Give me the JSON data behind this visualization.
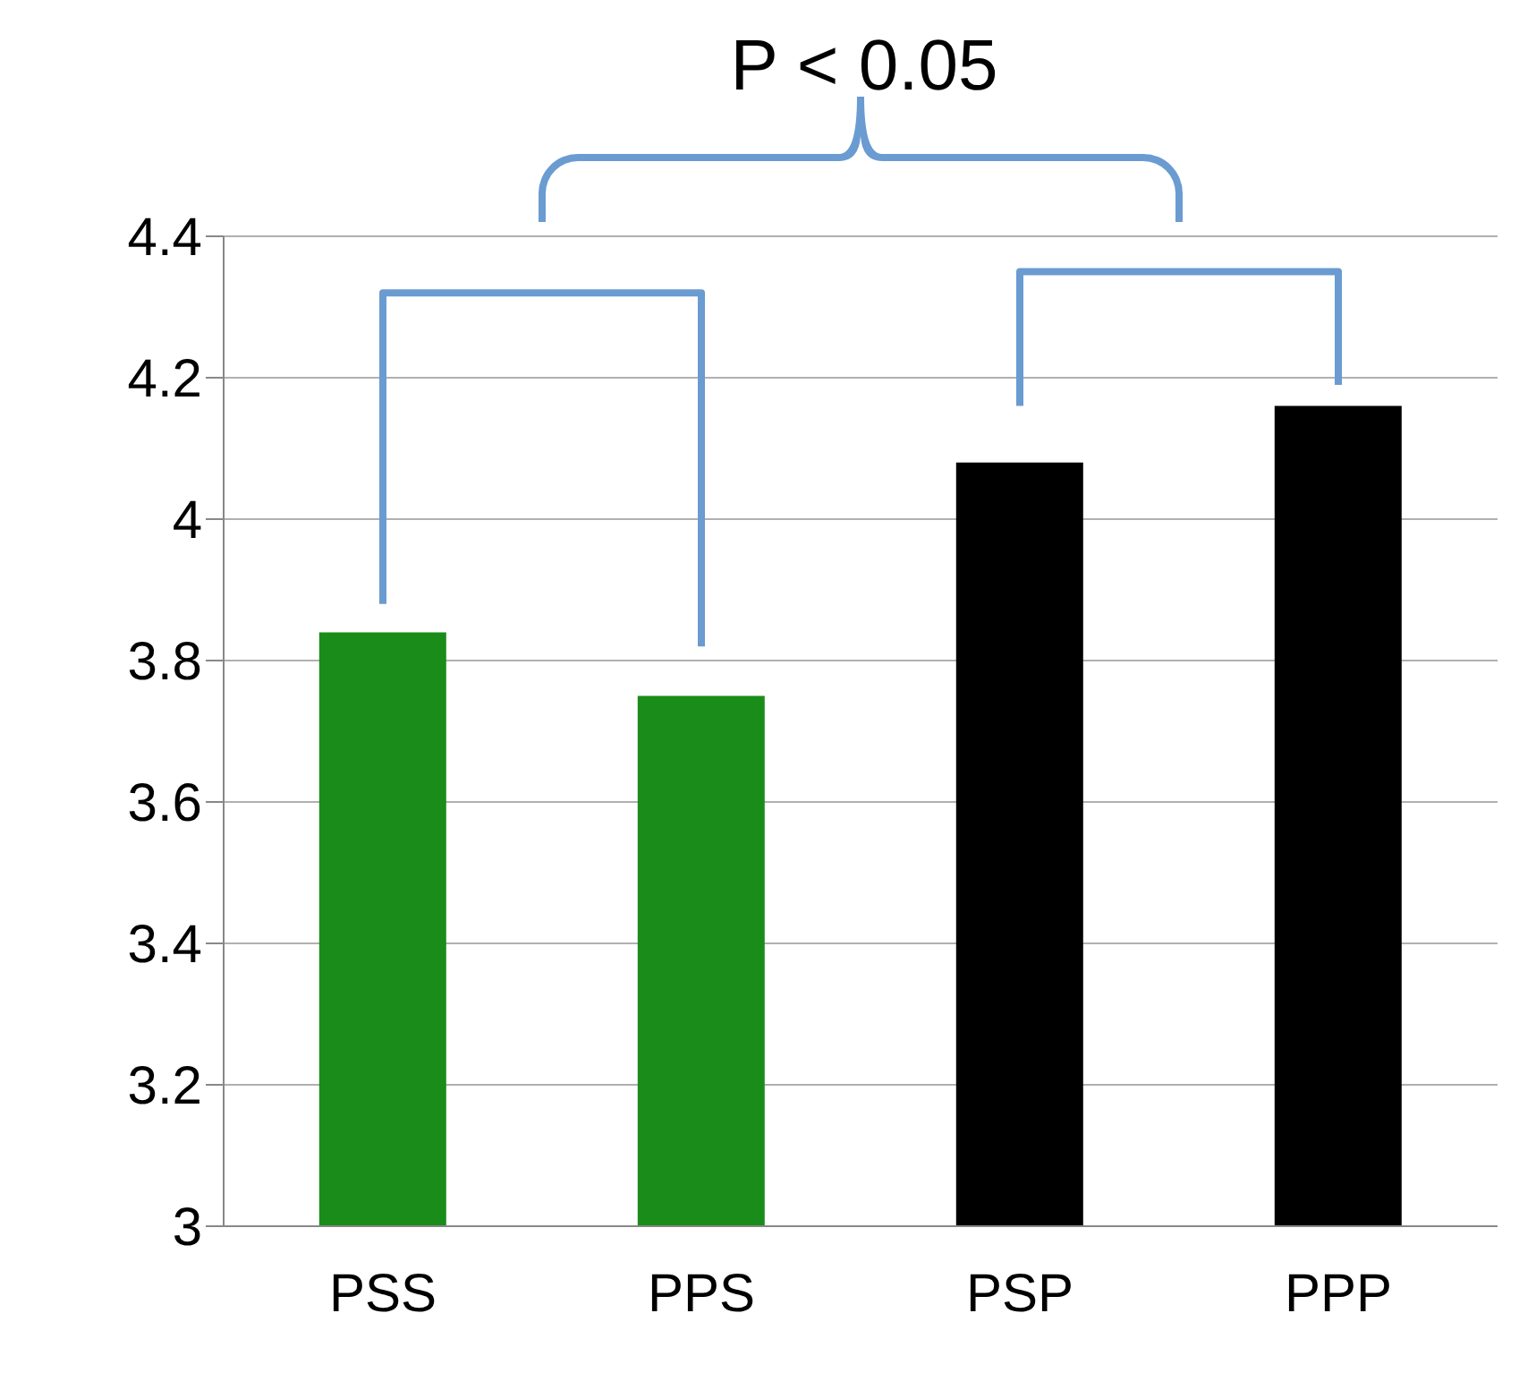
{
  "chart_data": {
    "type": "bar",
    "categories": [
      "PSS",
      "PPS",
      "PSP",
      "PPP"
    ],
    "values": [
      3.84,
      3.75,
      4.08,
      4.16
    ],
    "colors": [
      "#1a8c1a",
      "#1a8c1a",
      "#000000",
      "#000000"
    ],
    "ylim": [
      3,
      4.4
    ],
    "yticks": [
      3,
      3.2,
      3.4,
      3.6,
      3.8,
      4,
      4.2,
      4.4
    ],
    "grid": "y",
    "annotations": [
      "P < 0.05"
    ]
  }
}
